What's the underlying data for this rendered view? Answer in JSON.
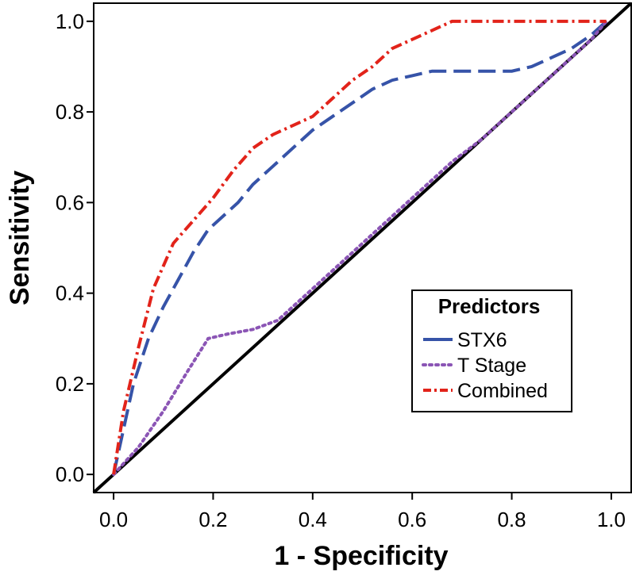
{
  "chart_data": {
    "type": "line",
    "title": "",
    "xlabel": "1 - Specificity",
    "ylabel": "Sensitivity",
    "xlim": [
      -0.04,
      1.04
    ],
    "ylim": [
      -0.04,
      1.04
    ],
    "xticks": [
      "0.0",
      "0.2",
      "0.4",
      "0.6",
      "0.8",
      "1.0"
    ],
    "yticks": [
      "0.0",
      "0.2",
      "0.4",
      "0.6",
      "0.8",
      "1.0"
    ],
    "grid": false,
    "legend": {
      "title": "Predictors",
      "position": "lower-right"
    },
    "reference_line": {
      "name": "Diagonal",
      "color": "#000000",
      "x": [
        -0.04,
        1.04
      ],
      "y": [
        -0.04,
        1.04
      ]
    },
    "series": [
      {
        "name": "STX6",
        "color": "#3653a8",
        "style": "dashed",
        "x": [
          0.0,
          0.02,
          0.04,
          0.07,
          0.1,
          0.13,
          0.16,
          0.19,
          0.22,
          0.25,
          0.28,
          0.32,
          0.36,
          0.4,
          0.44,
          0.48,
          0.52,
          0.56,
          0.6,
          0.64,
          0.68,
          0.72,
          0.76,
          0.8,
          0.84,
          0.88,
          0.92,
          0.96,
          0.99
        ],
        "y": [
          0.0,
          0.1,
          0.2,
          0.3,
          0.37,
          0.43,
          0.49,
          0.54,
          0.57,
          0.6,
          0.64,
          0.68,
          0.72,
          0.76,
          0.79,
          0.82,
          0.85,
          0.87,
          0.88,
          0.89,
          0.89,
          0.89,
          0.89,
          0.89,
          0.9,
          0.92,
          0.94,
          0.97,
          1.0
        ]
      },
      {
        "name": "T Stage",
        "color": "#8b55b5",
        "style": "dotted",
        "x": [
          0.0,
          0.05,
          0.1,
          0.15,
          0.19,
          0.23,
          0.28,
          0.33,
          0.38,
          0.44,
          0.5,
          0.56,
          0.62,
          0.68,
          0.74,
          0.8,
          0.86,
          0.92,
          0.96,
          0.99
        ],
        "y": [
          0.0,
          0.06,
          0.14,
          0.23,
          0.3,
          0.31,
          0.32,
          0.34,
          0.39,
          0.45,
          0.51,
          0.57,
          0.63,
          0.69,
          0.74,
          0.8,
          0.86,
          0.92,
          0.96,
          1.0
        ]
      },
      {
        "name": "Combined",
        "color": "#e2231a",
        "style": "dash-dot",
        "x": [
          0.0,
          0.02,
          0.05,
          0.08,
          0.12,
          0.16,
          0.2,
          0.24,
          0.28,
          0.32,
          0.36,
          0.4,
          0.44,
          0.48,
          0.52,
          0.56,
          0.6,
          0.64,
          0.68,
          0.72,
          0.8,
          0.9,
          0.99
        ],
        "y": [
          0.0,
          0.14,
          0.28,
          0.41,
          0.51,
          0.56,
          0.61,
          0.67,
          0.72,
          0.75,
          0.77,
          0.79,
          0.83,
          0.87,
          0.9,
          0.94,
          0.96,
          0.98,
          1.0,
          1.0,
          1.0,
          1.0,
          1.0
        ]
      }
    ]
  }
}
